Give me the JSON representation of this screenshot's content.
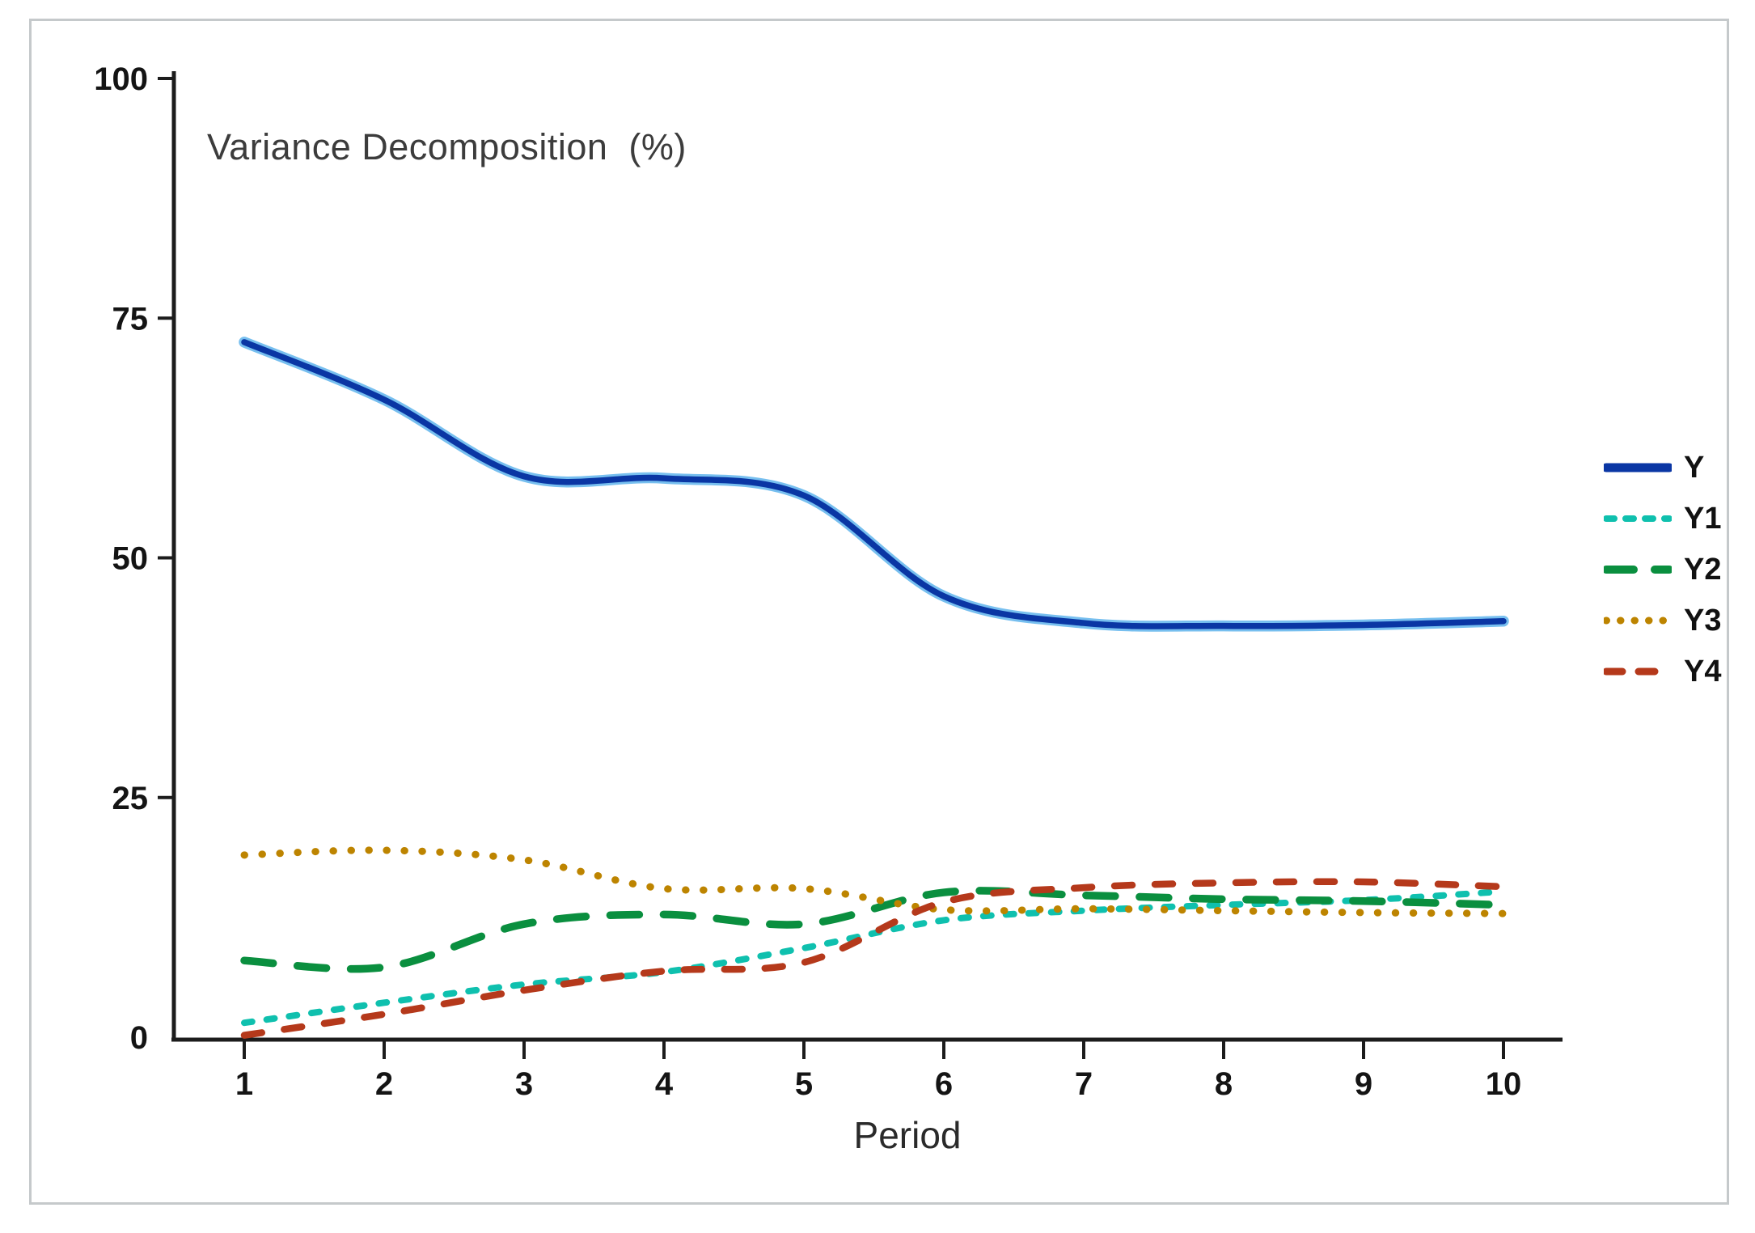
{
  "frame": {
    "border_color": "#c5c9cb",
    "background": "#ffffff"
  },
  "chart_data": {
    "type": "line",
    "title": "Variance Decomposition  (%)",
    "xlabel": "Period",
    "ylabel": "",
    "x": [
      1,
      2,
      3,
      4,
      5,
      6,
      7,
      8,
      9,
      10
    ],
    "x_tick_labels": [
      "1",
      "2",
      "3",
      "4",
      "5",
      "6",
      "7",
      "8",
      "9",
      "10"
    ],
    "y_ticks": [
      0,
      25,
      50,
      75,
      100
    ],
    "y_tick_labels": [
      "0",
      "25",
      "50",
      "75",
      "100"
    ],
    "xlim": [
      0.5,
      10.45
    ],
    "ylim": [
      0,
      100
    ],
    "grid": false,
    "legend_position": "right-outside",
    "axis_color": "#1c1c1c",
    "series": [
      {
        "name": "Y",
        "color": "#0a36a4",
        "halo_color": "#5fb4ec",
        "line_style": "solid",
        "values": [
          72.5,
          66.5,
          58.5,
          58.3,
          56.5,
          46.0,
          43.2,
          42.9,
          43.0,
          43.4
        ]
      },
      {
        "name": "Y1",
        "color": "#0fc0ae",
        "line_style": "dashed-short",
        "values": [
          1.5,
          3.6,
          5.5,
          6.8,
          9.3,
          12.2,
          13.2,
          13.8,
          14.3,
          15.2
        ]
      },
      {
        "name": "Y2",
        "color": "#0a8f3f",
        "line_style": "dashed-long",
        "values": [
          8.0,
          7.3,
          11.8,
          12.8,
          11.8,
          15.1,
          14.8,
          14.4,
          14.2,
          13.8
        ]
      },
      {
        "name": "Y3",
        "color": "#bd8400",
        "line_style": "dotted",
        "values": [
          19.0,
          19.5,
          18.5,
          15.5,
          15.5,
          13.3,
          13.4,
          13.2,
          13.0,
          12.9
        ]
      },
      {
        "name": "Y4",
        "color": "#b5391b",
        "line_style": "dashed-medium",
        "values": [
          0.2,
          2.4,
          4.9,
          6.9,
          7.8,
          14.1,
          15.6,
          16.1,
          16.2,
          15.7
        ]
      }
    ]
  }
}
